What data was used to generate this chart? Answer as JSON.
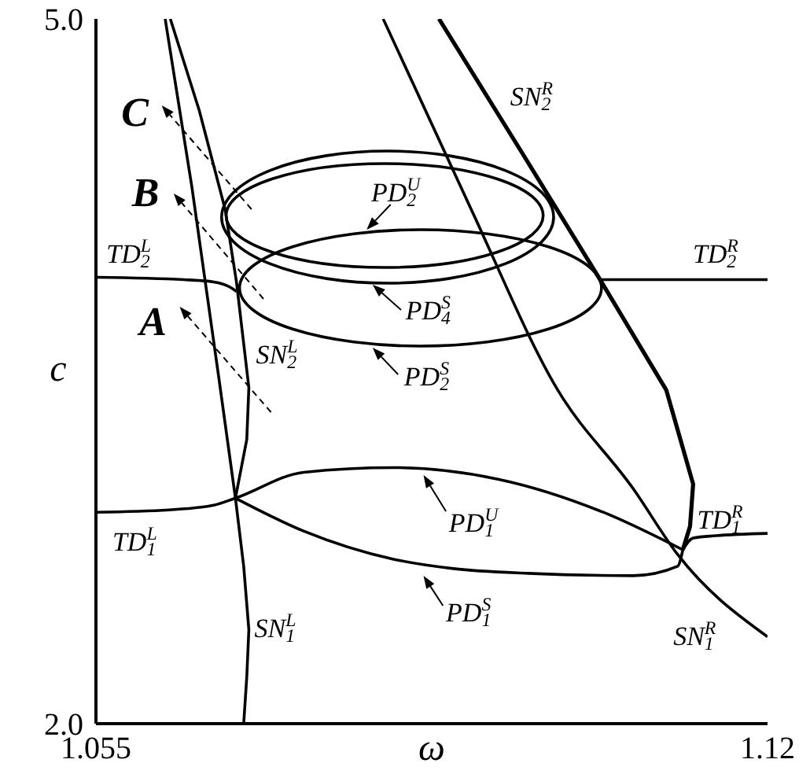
{
  "chart_data": {
    "type": "line",
    "xlabel": "ω",
    "ylabel": "c",
    "xlim": [
      1.055,
      1.12
    ],
    "xticks": [
      1.055,
      1.12
    ],
    "ylim": [
      2,
      5
    ],
    "yticks": [
      {
        "value": 2,
        "label": "2.0"
      },
      {
        "value": 5,
        "label": "5.0"
      }
    ],
    "marker": "none",
    "line_style": "solid",
    "annotations": [
      "SN$_{2}$$^{R}$",
      "TD$_{2}$$^{L}$",
      "TD$_{2}$$^{R}$",
      "SN$_{2}$$^{L}$",
      "PD$_{2}$$^{U}$",
      "PD$_{4}$$^{S}$",
      "PD$_{2}$$^{S}$",
      "PD$_{1}$$^{U}$",
      "PD$_{1}$$^{S}$",
      "TD$_{1}$$^{L}$",
      "SN$_{1}$$^{L}$",
      "TD$_{1}$$^{R}$",
      "SN$_{1}$$^{R}$",
      "A",
      "B",
      "C"
    ],
    "series": [
      {
        "color": "#000000",
        "x": [
          1.0617,
          1.0643,
          1.0669,
          1.0685,
          1.0693,
          1.0698,
          1.0696,
          1.0693
        ],
        "values": [
          5.0,
          4.28,
          3.47,
          2.96,
          2.67,
          2.4,
          2.2,
          2.0
        ]
      },
      {
        "color": "#000000",
        "x": [
          1.0622,
          1.065,
          1.0675,
          1.0686,
          1.0698,
          1.0696,
          1.0685
        ],
        "values": [
          5.0,
          4.61,
          4.19,
          3.88,
          3.43,
          3.21,
          2.96
        ]
      },
      {
        "color": "#000000",
        "x": [
          1.055,
          1.0635,
          1.0664,
          1.0679,
          1.0686
        ],
        "values": [
          3.9,
          3.89,
          3.88,
          3.86,
          3.84
        ]
      },
      {
        "color": "#000000",
        "x": [
          1.1038,
          1.12
        ],
        "values": [
          3.89,
          3.89
        ]
      },
      {
        "color": "#000000",
        "x": [
          1.055,
          1.0621,
          1.0664,
          1.0685,
          1.0751,
          1.0838,
          1.094,
          1.1041,
          1.1118
        ],
        "values": [
          2.9,
          2.91,
          2.93,
          2.96,
          3.07,
          3.09,
          3.04,
          2.9,
          2.74
        ]
      },
      {
        "color": "#000000",
        "x": [
          1.0828,
          1.0911,
          1.0997,
          1.107,
          1.1113,
          1.12
        ],
        "values": [
          5.0,
          4.21,
          3.42,
          3.0,
          2.72,
          2.37
        ]
      },
      {
        "color": "#000000",
        "x": [
          1.0882,
          1.0961,
          1.1038,
          1.1102,
          1.1128,
          1.1125,
          1.1118
        ],
        "values": [
          5.0,
          4.44,
          3.89,
          3.42,
          3.02,
          2.84,
          2.74
        ]
      },
      {
        "color": "#000000",
        "x": [
          1.1118,
          1.1128,
          1.115,
          1.12
        ],
        "values": [
          2.74,
          2.79,
          2.8,
          2.81
        ]
      },
      {
        "color": "#000000",
        "x": [
          1.0685,
          1.0751,
          1.0838,
          1.0896,
          1.0968,
          1.107,
          1.1113,
          1.1118
        ],
        "values": [
          2.96,
          2.82,
          2.7,
          2.66,
          2.64,
          2.63,
          2.67,
          2.74
        ]
      }
    ]
  }
}
